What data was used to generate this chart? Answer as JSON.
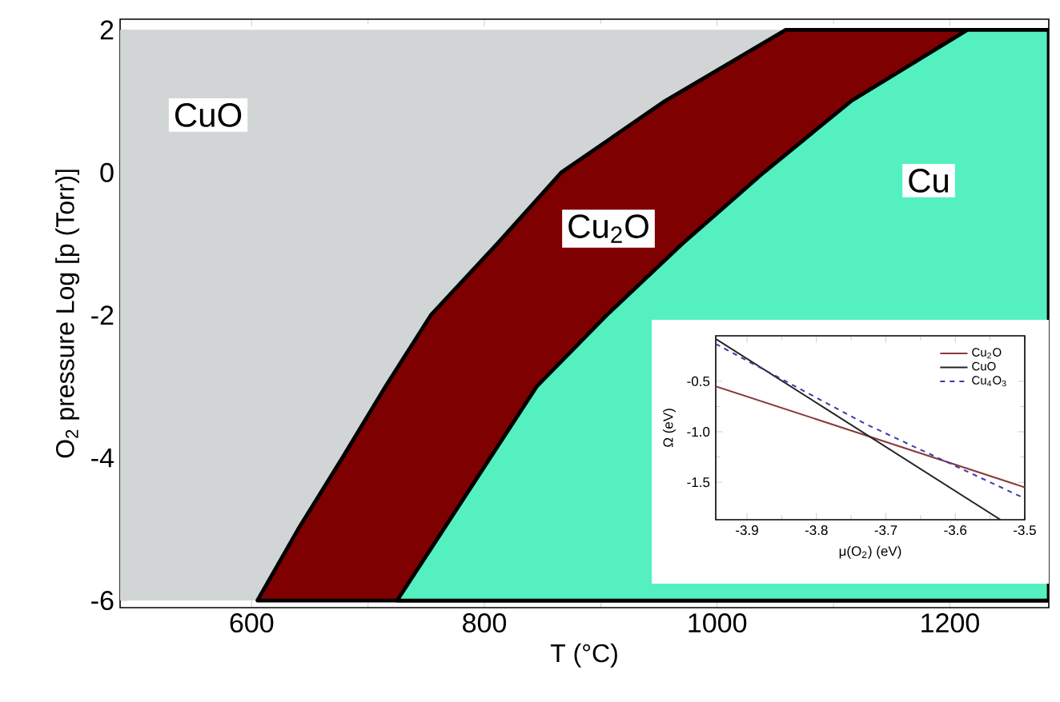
{
  "chart_data": [
    {
      "type": "area",
      "xlabel": "T (°C)",
      "ylabel": "O$_{2}$ pressure Log [p (Torr)]",
      "xlim": [
        487,
        1285
      ],
      "ylim": [
        -6.1,
        2.15
      ],
      "xticks": [
        600,
        800,
        1000,
        1200
      ],
      "yticks": [
        -6,
        -4,
        -2,
        0,
        2
      ],
      "bands": [
        {
          "axis": "y",
          "from": -6,
          "to": 2,
          "color": "#d1d5d5"
        }
      ],
      "series": [
        {
          "color": "#7f0000",
          "x": [
            605,
            640,
            678,
            715,
            754,
            811,
            866,
            955,
            1059,
            1285,
            1285
          ],
          "values": [
            -6,
            -5,
            -4,
            -3,
            -2,
            -1,
            0,
            1,
            2,
            2,
            -6
          ]
        },
        {
          "color": "#55f0c0",
          "x": [
            725,
            765,
            805,
            845,
            905,
            970,
            1040,
            1115,
            1215,
            1285,
            1285
          ],
          "values": [
            -6,
            -5,
            -4,
            -3,
            -2,
            -1,
            0,
            1,
            2,
            2,
            -6
          ]
        }
      ],
      "annotations": [
        "CuO",
        "Cu$_{2}$O",
        "Cu"
      ]
    },
    {
      "type": "line",
      "xlabel": "μ(O$_{2}$) (eV)",
      "ylabel": "Ω (eV)",
      "xlim": [
        -3.945,
        -3.5
      ],
      "ylim": [
        -1.87,
        -0.05
      ],
      "xticks": [
        -3.9,
        -3.8,
        -3.7,
        -3.6,
        -3.5
      ],
      "yticks": [
        {
          "value": -0.5,
          "label": "-0.5"
        },
        {
          "value": -1.0,
          "label": "-1.0"
        },
        {
          "value": -1.5,
          "label": "-1.5"
        }
      ],
      "legend": "top right",
      "series": [
        {
          "name": "Cu$_{2}$O",
          "color": "#8b3a3a",
          "line_style": "solid",
          "x": [
            -3.945,
            -3.5
          ],
          "values": [
            -0.55,
            -1.55
          ]
        },
        {
          "name": "CuO",
          "color": "#222222",
          "line_style": "solid",
          "x": [
            -3.945,
            -3.535
          ],
          "values": [
            -0.08,
            -1.87
          ]
        },
        {
          "name": "Cu$_{4}$O$_{3}$",
          "color": "#3a3aa8",
          "line_style": "dashed",
          "x": [
            -3.945,
            -3.73,
            -3.5
          ],
          "values": [
            -0.13,
            -0.92,
            -1.66
          ]
        }
      ]
    }
  ]
}
